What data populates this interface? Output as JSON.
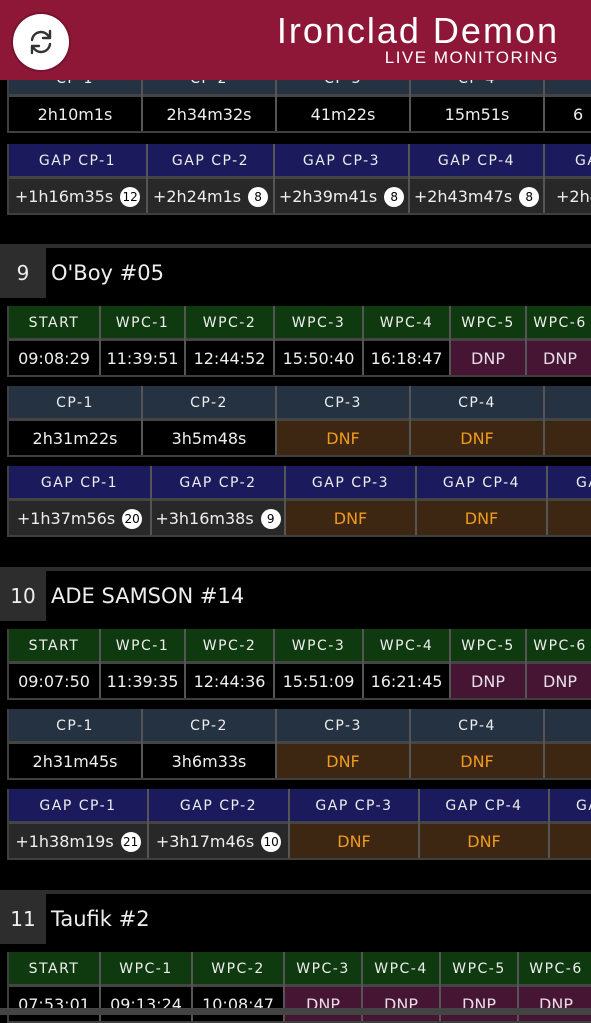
{
  "header": {
    "title": "Ironclad Demon",
    "subtitle": "LIVE MONITORING"
  },
  "prev": {
    "cp_headers": [
      "CP-1",
      "CP-2",
      "CP-3",
      "CP-4",
      ""
    ],
    "cp_values": [
      "2h10m1s",
      "2h34m32s",
      "41m22s",
      "15m51s",
      "6"
    ],
    "gap_headers": [
      "GAP CP-1",
      "GAP CP-2",
      "GAP CP-3",
      "GAP CP-4",
      "GA"
    ],
    "gap_values": [
      {
        "time": "+1h16m35s",
        "rank": "12"
      },
      {
        "time": "+2h24m1s",
        "rank": "8"
      },
      {
        "time": "+2h39m41s",
        "rank": "8"
      },
      {
        "time": "+2h43m47s",
        "rank": "8"
      },
      {
        "time": "+2h4",
        "rank": ""
      }
    ]
  },
  "riders": [
    {
      "pos": "9",
      "name": "O'Boy #05",
      "wpc_headers": [
        "START",
        "WPC-1",
        "WPC-2",
        "WPC-3",
        "WPC-4",
        "WPC-5",
        "WPC-6"
      ],
      "wpc_values": [
        "09:08:29",
        "11:39:51",
        "12:44:52",
        "15:50:40",
        "16:18:47",
        "DNP",
        "DNP"
      ],
      "cp_headers": [
        "CP-1",
        "CP-2",
        "CP-3",
        "CP-4",
        ""
      ],
      "cp_values": [
        "2h31m22s",
        "3h5m48s",
        "DNF",
        "DNF",
        ""
      ],
      "gap_headers": [
        "GAP CP-1",
        "GAP CP-2",
        "GAP CP-3",
        "GAP CP-4",
        "GA"
      ],
      "gap_values": [
        {
          "time": "+1h37m56s",
          "rank": "20"
        },
        {
          "time": "+3h16m38s",
          "rank": "9"
        },
        {
          "time": "DNF",
          "rank": ""
        },
        {
          "time": "DNF",
          "rank": ""
        },
        {
          "time": "",
          "rank": ""
        }
      ]
    },
    {
      "pos": "10",
      "name": "ADE SAMSON #14",
      "wpc_headers": [
        "START",
        "WPC-1",
        "WPC-2",
        "WPC-3",
        "WPC-4",
        "WPC-5",
        "WPC-6"
      ],
      "wpc_values": [
        "09:07:50",
        "11:39:35",
        "12:44:36",
        "15:51:09",
        "16:21:45",
        "DNP",
        "DNP"
      ],
      "cp_headers": [
        "CP-1",
        "CP-2",
        "CP-3",
        "CP-4",
        ""
      ],
      "cp_values": [
        "2h31m45s",
        "3h6m33s",
        "DNF",
        "DNF",
        ""
      ],
      "gap_headers": [
        "GAP CP-1",
        "GAP CP-2",
        "GAP CP-3",
        "GAP CP-4",
        "GA"
      ],
      "gap_values": [
        {
          "time": "+1h38m19s",
          "rank": "21"
        },
        {
          "time": "+3h17m46s",
          "rank": "10"
        },
        {
          "time": "DNF",
          "rank": ""
        },
        {
          "time": "DNF",
          "rank": ""
        },
        {
          "time": "",
          "rank": ""
        }
      ]
    },
    {
      "pos": "11",
      "name": "Taufik #2",
      "wpc_headers": [
        "START",
        "WPC-1",
        "WPC-2",
        "WPC-3",
        "WPC-4",
        "WPC-5",
        "WPC-6"
      ],
      "wpc_values": [
        "07:53:01",
        "09:13:24",
        "10:08:47",
        "DNP",
        "DNP",
        "DNP",
        "DNP"
      ]
    }
  ]
}
